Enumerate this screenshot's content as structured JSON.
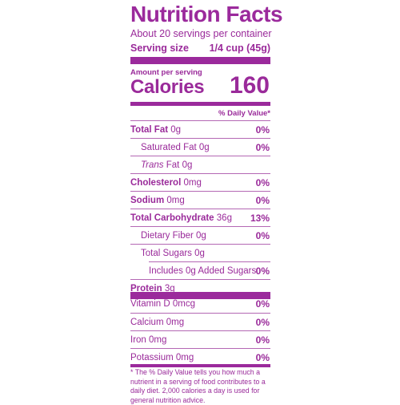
{
  "title": "Nutrition Facts",
  "servings_per_container": "About 20 servings per container",
  "serving_size_label": "Serving size",
  "serving_size_value": "1/4 cup (45g)",
  "amount_per_serving": "Amount per serving",
  "calories_label": "Calories",
  "calories_value": "160",
  "daily_value_header": "% Daily Value*",
  "nutrients": [
    {
      "name": "Total Fat",
      "amount": "0g",
      "pct": "0%"
    },
    {
      "name": "Saturated Fat",
      "amount": "0g",
      "pct": "0%"
    },
    {
      "name": "Trans",
      "name_suffix": "Fat",
      "amount": "0g",
      "pct": ""
    },
    {
      "name": "Cholesterol",
      "amount": "0mg",
      "pct": "0%"
    },
    {
      "name": "Sodium",
      "amount": "0mg",
      "pct": "0%"
    },
    {
      "name": "Total Carbohydrate",
      "amount": "36g",
      "pct": "13%"
    },
    {
      "name": "Dietary Fiber",
      "amount": "0g",
      "pct": "0%"
    },
    {
      "name": "Total Sugars",
      "amount": "0g",
      "pct": ""
    },
    {
      "name": "Includes 0g Added Sugars",
      "amount": "",
      "pct": "0%"
    },
    {
      "name": "Protein",
      "amount": "3g",
      "pct": ""
    }
  ],
  "vitamins": [
    {
      "name": "Vitamin D",
      "amount": "0mcg",
      "pct": "0%"
    },
    {
      "name": "Calcium",
      "amount": "0mg",
      "pct": "0%"
    },
    {
      "name": "Iron",
      "amount": "0mg",
      "pct": "0%"
    },
    {
      "name": "Potassium",
      "amount": "0mg",
      "pct": "0%"
    }
  ],
  "footnote": "* The % Daily Value tells you how much a nutrient in a serving of food contributes to a daily diet. 2,000 calories a day is used for general nutrition advice.",
  "colors": {
    "ink": "#9b2a9c"
  }
}
